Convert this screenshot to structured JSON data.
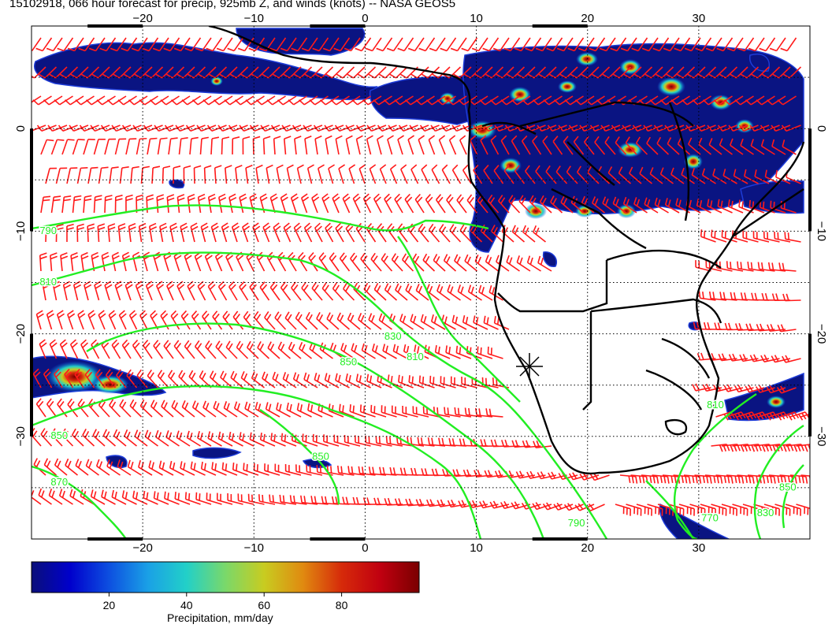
{
  "title": "15102918, 066 hour forecast for precip, 925mb Z, and winds (knots) -- NASA GEOS5",
  "map": {
    "lon_range": [
      -30,
      40
    ],
    "lat_range": [
      -40,
      10
    ],
    "lon_ticks": [
      {
        "value": -20,
        "label": "−20"
      },
      {
        "value": -10,
        "label": "−10"
      },
      {
        "value": 0,
        "label": "0"
      },
      {
        "value": 10,
        "label": "10"
      },
      {
        "value": 20,
        "label": "20"
      },
      {
        "value": 30,
        "label": "30"
      }
    ],
    "lat_ticks": [
      {
        "value": 0,
        "label": "0"
      },
      {
        "value": -10,
        "label": "−10"
      },
      {
        "value": -20,
        "label": "−20"
      },
      {
        "value": -30,
        "label": "−30"
      }
    ],
    "contour_labels": [
      {
        "text": "790",
        "lon": -28.5,
        "lat": -10
      },
      {
        "text": "810",
        "lon": -28.5,
        "lat": -15
      },
      {
        "text": "850",
        "lon": -27.5,
        "lat": -30
      },
      {
        "text": "870",
        "lon": -27.5,
        "lat": -34.5
      },
      {
        "text": "850",
        "lon": -1.5,
        "lat": -22.8
      },
      {
        "text": "830",
        "lon": 2.5,
        "lat": -20.3
      },
      {
        "text": "810",
        "lon": 4.5,
        "lat": -22.3
      },
      {
        "text": "850",
        "lon": -4,
        "lat": -32
      },
      {
        "text": "790",
        "lon": 19,
        "lat": -38.5
      },
      {
        "text": "770",
        "lon": 31,
        "lat": -38
      },
      {
        "text": "830",
        "lon": 36,
        "lat": -37.5
      },
      {
        "text": "850",
        "lon": 38,
        "lat": -35
      },
      {
        "text": "810",
        "lon": 31.5,
        "lat": -27
      }
    ],
    "colors": {
      "contour": "#22ee22",
      "wind_barb": "#ff1a1a",
      "coast": "#000000",
      "grid": "#000000"
    }
  },
  "colorbar": {
    "label": "Precipitation, mm/day",
    "range": [
      0,
      100
    ],
    "ticks": [
      {
        "value": 20,
        "label": "20"
      },
      {
        "value": 40,
        "label": "40"
      },
      {
        "value": 60,
        "label": "60"
      },
      {
        "value": 80,
        "label": "80"
      }
    ],
    "colors": [
      "#0a0f7a",
      "#0000cc",
      "#0d4fe0",
      "#1aa0e6",
      "#22d0c8",
      "#7ad86a",
      "#c8cc20",
      "#e08a10",
      "#d62a0a",
      "#c00010",
      "#7a0000"
    ]
  }
}
